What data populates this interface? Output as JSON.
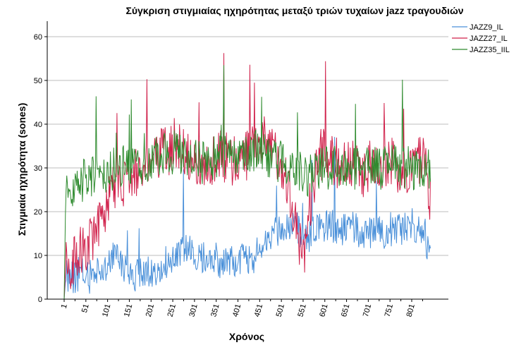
{
  "chart_data": {
    "type": "line",
    "title": "Σύγκριση στιγμιαίας ηχηρότητας μεταξύ τριών τυχαίων jazz τραγουδιών",
    "xlabel": "Χρόνος",
    "ylabel": "Στιγμιαία ηχηρότητα (sones)",
    "xlim": [
      1,
      855
    ],
    "ylim": [
      0,
      60
    ],
    "x_ticks": [
      "1",
      "51",
      "101",
      "151",
      "201",
      "251",
      "301",
      "351",
      "401",
      "451",
      "501",
      "551",
      "601",
      "651",
      "701",
      "751",
      "801"
    ],
    "y_ticks": [
      0,
      10,
      20,
      30,
      40,
      50,
      60
    ],
    "grid": "horizontal",
    "legend": "top-right",
    "series": [
      {
        "name": "JAZZ9_IL",
        "color": "#4a90d9",
        "points": [
          [
            1,
            0
          ],
          [
            5,
            5
          ],
          [
            20,
            5
          ],
          [
            40,
            6
          ],
          [
            60,
            5
          ],
          [
            80,
            7
          ],
          [
            100,
            8
          ],
          [
            115,
            10
          ],
          [
            130,
            8
          ],
          [
            150,
            6
          ],
          [
            170,
            5
          ],
          [
            190,
            6
          ],
          [
            210,
            7
          ],
          [
            230,
            8
          ],
          [
            250,
            10
          ],
          [
            270,
            11
          ],
          [
            290,
            11
          ],
          [
            310,
            10
          ],
          [
            330,
            10
          ],
          [
            350,
            9
          ],
          [
            370,
            8
          ],
          [
            390,
            9
          ],
          [
            410,
            9
          ],
          [
            430,
            8
          ],
          [
            450,
            12
          ],
          [
            470,
            14
          ],
          [
            490,
            15
          ],
          [
            510,
            16
          ],
          [
            530,
            17
          ],
          [
            550,
            14
          ],
          [
            570,
            15
          ],
          [
            590,
            16
          ],
          [
            610,
            17
          ],
          [
            630,
            16
          ],
          [
            650,
            16
          ],
          [
            670,
            16
          ],
          [
            690,
            15
          ],
          [
            710,
            15
          ],
          [
            730,
            15
          ],
          [
            750,
            16
          ],
          [
            770,
            16
          ],
          [
            790,
            17
          ],
          [
            810,
            17
          ],
          [
            830,
            16
          ],
          [
            845,
            8
          ]
        ]
      },
      {
        "name": "JAZZ27_IL",
        "color": "#d0204a",
        "points": [
          [
            1,
            0
          ],
          [
            5,
            8
          ],
          [
            20,
            8
          ],
          [
            40,
            11
          ],
          [
            60,
            13
          ],
          [
            80,
            16
          ],
          [
            90,
            17
          ],
          [
            100,
            23
          ],
          [
            120,
            26
          ],
          [
            140,
            27
          ],
          [
            160,
            28
          ],
          [
            180,
            30
          ],
          [
            200,
            31
          ],
          [
            220,
            33
          ],
          [
            240,
            34
          ],
          [
            260,
            36
          ],
          [
            280,
            34
          ],
          [
            300,
            32
          ],
          [
            320,
            31
          ],
          [
            340,
            32
          ],
          [
            360,
            33
          ],
          [
            380,
            32
          ],
          [
            400,
            32
          ],
          [
            420,
            33
          ],
          [
            440,
            35
          ],
          [
            460,
            36
          ],
          [
            480,
            34
          ],
          [
            500,
            32
          ],
          [
            520,
            25
          ],
          [
            540,
            13
          ],
          [
            555,
            11
          ],
          [
            570,
            24
          ],
          [
            590,
            33
          ],
          [
            610,
            33
          ],
          [
            630,
            31
          ],
          [
            650,
            31
          ],
          [
            670,
            30
          ],
          [
            690,
            29
          ],
          [
            710,
            31
          ],
          [
            730,
            31
          ],
          [
            750,
            32
          ],
          [
            770,
            30
          ],
          [
            790,
            29
          ],
          [
            810,
            31
          ],
          [
            830,
            33
          ],
          [
            845,
            22
          ]
        ]
      },
      {
        "name": "JAZZ35_IIL",
        "color": "#2e8b2e",
        "points": [
          [
            1,
            0
          ],
          [
            5,
            26
          ],
          [
            20,
            25
          ],
          [
            40,
            27
          ],
          [
            60,
            28
          ],
          [
            80,
            28
          ],
          [
            100,
            29
          ],
          [
            120,
            30
          ],
          [
            140,
            31
          ],
          [
            160,
            30
          ],
          [
            180,
            31
          ],
          [
            200,
            32
          ],
          [
            220,
            33
          ],
          [
            240,
            33
          ],
          [
            260,
            34
          ],
          [
            280,
            33
          ],
          [
            300,
            32
          ],
          [
            320,
            31
          ],
          [
            340,
            32
          ],
          [
            360,
            33
          ],
          [
            380,
            32
          ],
          [
            400,
            33
          ],
          [
            420,
            34
          ],
          [
            440,
            34
          ],
          [
            460,
            33
          ],
          [
            480,
            31
          ],
          [
            500,
            32
          ],
          [
            520,
            31
          ],
          [
            540,
            29
          ],
          [
            560,
            28
          ],
          [
            580,
            29
          ],
          [
            600,
            30
          ],
          [
            620,
            30
          ],
          [
            640,
            31
          ],
          [
            660,
            30
          ],
          [
            680,
            30
          ],
          [
            700,
            30
          ],
          [
            720,
            30
          ],
          [
            740,
            30
          ],
          [
            760,
            31
          ],
          [
            780,
            30
          ],
          [
            800,
            30
          ],
          [
            820,
            30
          ],
          [
            845,
            30
          ]
        ]
      }
    ]
  }
}
